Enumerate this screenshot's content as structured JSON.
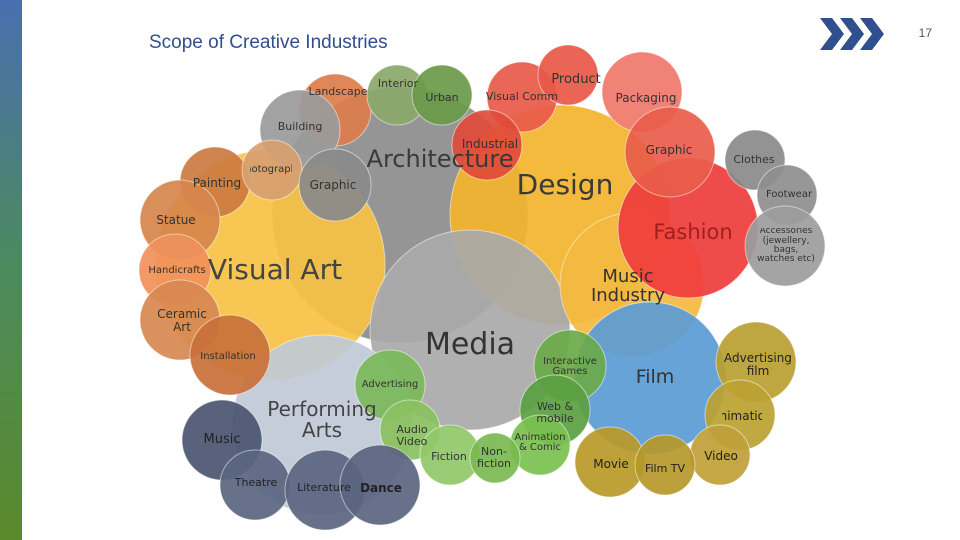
{
  "header": {
    "title": "Scope of Creative Industries",
    "page_number": "17"
  },
  "nodes": [
    {
      "label": "Architecture"
    },
    {
      "label": "Visual Art"
    },
    {
      "label": "Design"
    },
    {
      "label": "Media"
    },
    {
      "label": "Music Industry"
    },
    {
      "label": "Film"
    },
    {
      "label": "Fashion"
    },
    {
      "label": "Performing Arts"
    },
    {
      "label": "Landscape"
    },
    {
      "label": "Interior"
    },
    {
      "label": "Urban"
    },
    {
      "label": "Visual Comm"
    },
    {
      "label": "Product"
    },
    {
      "label": "Packaging"
    },
    {
      "label": "Building"
    },
    {
      "label": "Industrial"
    },
    {
      "label": "Graphic"
    },
    {
      "label": "Clothes"
    },
    {
      "label": "Footwear"
    },
    {
      "label": "Accessories (jewellery, bags, watches etc)"
    },
    {
      "label": "Painting"
    },
    {
      "label": "Photography"
    },
    {
      "label": "Graphic"
    },
    {
      "label": "Statue"
    },
    {
      "label": "Handicrafts"
    },
    {
      "label": "Ceramic Art"
    },
    {
      "label": "Installation"
    },
    {
      "label": "Advertising"
    },
    {
      "label": "Interactive Games"
    },
    {
      "label": "Web & mobile"
    },
    {
      "label": "Animation & Comic"
    },
    {
      "label": "Audio Video"
    },
    {
      "label": "Fiction"
    },
    {
      "label": "Non-fiction"
    },
    {
      "label": "Music"
    },
    {
      "label": "Theatre"
    },
    {
      "label": "Literature"
    },
    {
      "label": "Dance"
    },
    {
      "label": "Advertising film"
    },
    {
      "label": "Animation"
    },
    {
      "label": "Video"
    },
    {
      "label": "Movie"
    },
    {
      "label": "Film TV"
    }
  ]
}
